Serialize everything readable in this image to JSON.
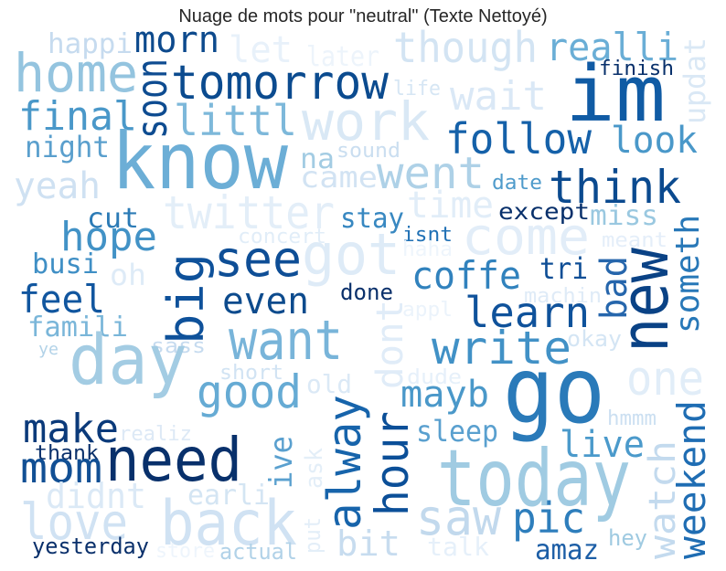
{
  "chart_data": {
    "type": "wordcloud",
    "title": "Nuage de mots pour \"neutral\" (Texte Nettoyé)",
    "words": [
      {
        "text": "happi",
        "weight": 0.3,
        "color": "#c6dbef"
      },
      {
        "text": "morn",
        "weight": 0.4,
        "color": "#0d4a8d"
      },
      {
        "text": "home",
        "weight": 0.58,
        "color": "#94c4df"
      },
      {
        "text": "let",
        "weight": 0.4,
        "color": "#e8f1fa"
      },
      {
        "text": "later",
        "weight": 0.3,
        "color": "#edf4fb"
      },
      {
        "text": "though",
        "weight": 0.46,
        "color": "#d3e4f3"
      },
      {
        "text": "realli",
        "weight": 0.42,
        "color": "#6aaed6"
      },
      {
        "text": "im",
        "weight": 0.85,
        "color": "#105ba4"
      },
      {
        "text": "finish",
        "weight": 0.22,
        "color": "#08306b"
      },
      {
        "text": "updat",
        "weight": 0.32,
        "color": "#dae8f5"
      },
      {
        "text": "life",
        "weight": 0.22,
        "color": "#d6e6f4"
      },
      {
        "text": "wait",
        "weight": 0.44,
        "color": "#dae8f6"
      },
      {
        "text": "work",
        "weight": 0.58,
        "color": "#d9e8f5"
      },
      {
        "text": "tomorrow",
        "weight": 0.52,
        "color": "#0b4b8f"
      },
      {
        "text": "final",
        "weight": 0.44,
        "color": "#4a98c9"
      },
      {
        "text": "littl",
        "weight": 0.46,
        "color": "#7db8da"
      },
      {
        "text": "soon",
        "weight": 0.46,
        "color": "#0e4c91"
      },
      {
        "text": "night",
        "weight": 0.32,
        "color": "#5a9fcd"
      },
      {
        "text": "know",
        "weight": 0.86,
        "color": "#6caed6"
      },
      {
        "text": "na",
        "weight": 0.3,
        "color": "#a3cce3"
      },
      {
        "text": "sound",
        "weight": 0.22,
        "color": "#cadef0"
      },
      {
        "text": "follow",
        "weight": 0.46,
        "color": "#1561a9"
      },
      {
        "text": "look",
        "weight": 0.4,
        "color": "#4a98c9"
      },
      {
        "text": "came",
        "weight": 0.32,
        "color": "#d2e3f3"
      },
      {
        "text": "went",
        "weight": 0.48,
        "color": "#aed1e7"
      },
      {
        "text": "date",
        "weight": 0.22,
        "color": "#4f9bcb"
      },
      {
        "text": "think",
        "weight": 0.5,
        "color": "#0b4a8f"
      },
      {
        "text": "yeah",
        "weight": 0.4,
        "color": "#cfe1f2"
      },
      {
        "text": "twitter",
        "weight": 0.5,
        "color": "#e3eef8"
      },
      {
        "text": "time",
        "weight": 0.4,
        "color": "#e1edf8"
      },
      {
        "text": "except",
        "weight": 0.25,
        "color": "#08306b"
      },
      {
        "text": "stay",
        "weight": 0.3,
        "color": "#3888c1"
      },
      {
        "text": "miss",
        "weight": 0.3,
        "color": "#9ac8e0"
      },
      {
        "text": "cut",
        "weight": 0.3,
        "color": "#2c7bb6"
      },
      {
        "text": "hope",
        "weight": 0.44,
        "color": "#4292c6"
      },
      {
        "text": "come",
        "weight": 0.56,
        "color": "#e2edf8"
      },
      {
        "text": "isnt",
        "weight": 0.22,
        "color": "#2171b5"
      },
      {
        "text": "concert",
        "weight": 0.22,
        "color": "#e1edf8"
      },
      {
        "text": "got",
        "weight": 0.62,
        "color": "#deebf7"
      },
      {
        "text": "haha",
        "weight": 0.22,
        "color": "#eef5fc"
      },
      {
        "text": "meant",
        "weight": 0.22,
        "color": "#e4eef9"
      },
      {
        "text": "someth",
        "weight": 0.36,
        "color": "#2878b8"
      },
      {
        "text": "busi",
        "weight": 0.3,
        "color": "#3f8fc5"
      },
      {
        "text": "big",
        "weight": 0.54,
        "color": "#0e519a"
      },
      {
        "text": "see",
        "weight": 0.54,
        "color": "#0e4e96"
      },
      {
        "text": "oh",
        "weight": 0.32,
        "color": "#deebf7"
      },
      {
        "text": "coffe",
        "weight": 0.42,
        "color": "#3182bd"
      },
      {
        "text": "tri",
        "weight": 0.32,
        "color": "#0e4e96"
      },
      {
        "text": "bad",
        "weight": 0.4,
        "color": "#2666ac"
      },
      {
        "text": "new",
        "weight": 0.72,
        "color": "#0a4285"
      },
      {
        "text": "feel",
        "weight": 0.42,
        "color": "#11569f"
      },
      {
        "text": "even",
        "weight": 0.4,
        "color": "#0d4b8d"
      },
      {
        "text": "done",
        "weight": 0.24,
        "color": "#0a306b"
      },
      {
        "text": "appl",
        "weight": 0.22,
        "color": "#ebf3fb"
      },
      {
        "text": "machin",
        "weight": 0.22,
        "color": "#dfebf7"
      },
      {
        "text": "learn",
        "weight": 0.46,
        "color": "#0f529b"
      },
      {
        "text": "dont",
        "weight": 0.4,
        "color": "#e0ecf8"
      },
      {
        "text": "famili",
        "weight": 0.3,
        "color": "#7ab6d9"
      },
      {
        "text": "want",
        "weight": 0.6,
        "color": "#78b4d9"
      },
      {
        "text": "ye",
        "weight": 0.18,
        "color": "#b3d3e8"
      },
      {
        "text": "sass",
        "weight": 0.22,
        "color": "#c6dbef"
      },
      {
        "text": "write",
        "weight": 0.5,
        "color": "#4191c6"
      },
      {
        "text": "okay",
        "weight": 0.24,
        "color": "#d4e5f4"
      },
      {
        "text": "day",
        "weight": 0.76,
        "color": "#a3cce3"
      },
      {
        "text": "short",
        "weight": 0.22,
        "color": "#d1e3f3"
      },
      {
        "text": "one",
        "weight": 0.52,
        "color": "#e1edf8"
      },
      {
        "text": "old",
        "weight": 0.28,
        "color": "#dbe9f6"
      },
      {
        "text": "dude",
        "weight": 0.22,
        "color": "#e6f0fa"
      },
      {
        "text": "good",
        "weight": 0.5,
        "color": "#66abd4"
      },
      {
        "text": "alway",
        "weight": 0.5,
        "color": "#1764ab"
      },
      {
        "text": "mayb",
        "weight": 0.4,
        "color": "#4a98c9"
      },
      {
        "text": "hour",
        "weight": 0.5,
        "color": "#0b4f98"
      },
      {
        "text": "make",
        "weight": 0.44,
        "color": "#0b3a7a"
      },
      {
        "text": "realiz",
        "weight": 0.22,
        "color": "#dde9f6"
      },
      {
        "text": "hmmm",
        "weight": 0.22,
        "color": "#cbdff1"
      },
      {
        "text": "sleep",
        "weight": 0.32,
        "color": "#5aa0cf"
      },
      {
        "text": "weekend",
        "weight": 0.42,
        "color": "#1f6db3"
      },
      {
        "text": "watch",
        "weight": 0.4,
        "color": "#c3daee"
      },
      {
        "text": "live",
        "weight": 0.4,
        "color": "#4b9acb"
      },
      {
        "text": "ive",
        "weight": 0.34,
        "color": "#5aa0cf"
      },
      {
        "text": "ask",
        "weight": 0.26,
        "color": "#e3eef8"
      },
      {
        "text": "need",
        "weight": 0.66,
        "color": "#08306b"
      },
      {
        "text": "thank",
        "weight": 0.22,
        "color": "#0a306b"
      },
      {
        "text": "mom",
        "weight": 0.46,
        "color": "#114f94"
      },
      {
        "text": "today",
        "weight": 0.86,
        "color": "#a0cbe2"
      },
      {
        "text": "didnt",
        "weight": 0.38,
        "color": "#dbe9f6"
      },
      {
        "text": "earli",
        "weight": 0.3,
        "color": "#d4e5f3"
      },
      {
        "text": "saw",
        "weight": 0.54,
        "color": "#c2d9ed"
      },
      {
        "text": "pic",
        "weight": 0.46,
        "color": "#2e7ebc"
      },
      {
        "text": "love",
        "weight": 0.54,
        "color": "#d0e2f3"
      },
      {
        "text": "back",
        "weight": 0.68,
        "color": "#d0e2f3"
      },
      {
        "text": "put",
        "weight": 0.24,
        "color": "#e3eef8"
      },
      {
        "text": "bit",
        "weight": 0.38,
        "color": "#c7dcef"
      },
      {
        "text": "talk",
        "weight": 0.28,
        "color": "#e6f0fa"
      },
      {
        "text": "hey",
        "weight": 0.24,
        "color": "#9fcae1"
      },
      {
        "text": "amaz",
        "weight": 0.3,
        "color": "#1c5ea6"
      },
      {
        "text": "yesterday",
        "weight": 0.24,
        "color": "#0a306b"
      },
      {
        "text": "store",
        "weight": 0.22,
        "color": "#eef5fc"
      },
      {
        "text": "actual",
        "weight": 0.24,
        "color": "#b1d2e8"
      },
      {
        "text": "go",
        "weight": 1.0,
        "color": "#2a7ab9"
      }
    ]
  }
}
